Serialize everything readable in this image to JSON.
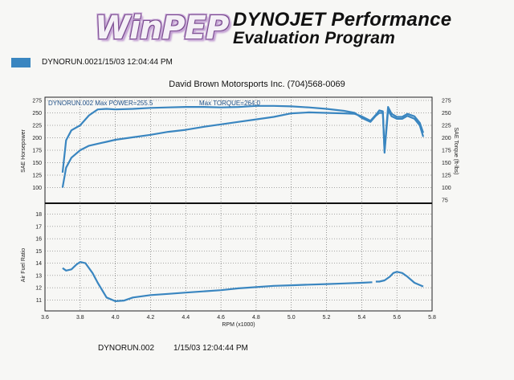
{
  "header": {
    "logo_text": "WinPEP",
    "brand_line1": "DYNOJET Performance",
    "brand_line2": "Evaluation Program"
  },
  "legend": {
    "entry": "DYNORUN.0021/15/03 12:04:44 PM",
    "swatch_color": "#3a86c0"
  },
  "shop_line": "David Brown Motorsports Inc. (704)568-0069",
  "footer": {
    "run_name": "DYNORUN.002",
    "run_date": "1/15/03 12:04:44 PM"
  },
  "chart_data": {
    "type": "line",
    "xlabel": "RPM (x1000)",
    "x_ticks": [
      "3.6",
      "3.8",
      "4.0",
      "4.2",
      "4.4",
      "4.6",
      "4.8",
      "5.0",
      "5.2",
      "5.4",
      "5.6",
      "5.8"
    ],
    "xlim": [
      3.6,
      5.8
    ],
    "series_color": "#3a86c0",
    "upper": {
      "ylabel_left": "SAE Horsepower",
      "ylabel_right": "SAE Torque (ft-lbs)",
      "y_ticks_left": [
        "100",
        "125",
        "150",
        "175",
        "200",
        "225",
        "250",
        "275"
      ],
      "y_ticks_right": [
        "75",
        "100",
        "125",
        "150",
        "175",
        "200",
        "225",
        "250",
        "275"
      ],
      "ylim": [
        75,
        275
      ],
      "annotation_power": "DYNORUN.002  Max POWER=255.5",
      "annotation_torque": "Max TORQUE=264.0",
      "torque": {
        "x": [
          3.7,
          3.72,
          3.75,
          3.8,
          3.85,
          3.9,
          3.95,
          4.0,
          4.1,
          4.2,
          4.3,
          4.4,
          4.5,
          4.6,
          4.7,
          4.8,
          4.9,
          5.0,
          5.1,
          5.2,
          5.3,
          5.36,
          5.4,
          5.45,
          5.48,
          5.5,
          5.52,
          5.53,
          5.55,
          5.57,
          5.6,
          5.63,
          5.66,
          5.7,
          5.73,
          5.75
        ],
        "values": [
          130,
          195,
          215,
          225,
          245,
          257,
          258,
          257,
          258,
          260,
          261,
          262,
          262,
          261,
          262,
          264,
          264,
          263,
          261,
          258,
          254,
          250,
          240,
          232,
          244,
          250,
          250,
          175,
          262,
          248,
          242,
          242,
          248,
          243,
          230,
          210
        ]
      },
      "power": {
        "x": [
          3.7,
          3.72,
          3.75,
          3.8,
          3.85,
          3.9,
          3.95,
          4.0,
          4.1,
          4.2,
          4.3,
          4.4,
          4.5,
          4.6,
          4.7,
          4.8,
          4.9,
          5.0,
          5.1,
          5.2,
          5.3,
          5.36,
          5.4,
          5.45,
          5.48,
          5.5,
          5.52,
          5.53,
          5.55,
          5.57,
          5.6,
          5.63,
          5.66,
          5.7,
          5.73,
          5.75
        ],
        "values": [
          100,
          140,
          160,
          175,
          184,
          188,
          192,
          196,
          201,
          206,
          212,
          216,
          222,
          227,
          232,
          237,
          242,
          249,
          251,
          250,
          249,
          248,
          243,
          234,
          246,
          255,
          253,
          170,
          255,
          243,
          238,
          238,
          244,
          238,
          225,
          202
        ]
      }
    },
    "lower": {
      "ylabel_left": "Air Fuel Ratio",
      "y_ticks_left": [
        "11",
        "12",
        "13",
        "14",
        "15",
        "16",
        "17",
        "18"
      ],
      "ylim": [
        10.5,
        18.5
      ],
      "afr": {
        "x": [
          3.7,
          3.72,
          3.75,
          3.78,
          3.8,
          3.83,
          3.87,
          3.9,
          3.95,
          4.0,
          4.05,
          4.1,
          4.2,
          4.3,
          4.4,
          4.5,
          4.6,
          4.7,
          4.8,
          4.9,
          5.0,
          5.1,
          5.2,
          5.3,
          5.4,
          5.46,
          5.48,
          5.5,
          5.53,
          5.56,
          5.58,
          5.6,
          5.63,
          5.66,
          5.7,
          5.75
        ],
        "values": [
          13.6,
          13.4,
          13.5,
          13.9,
          14.1,
          14.0,
          13.2,
          12.4,
          11.2,
          10.9,
          10.95,
          11.2,
          11.4,
          11.5,
          11.6,
          11.7,
          11.8,
          11.95,
          12.05,
          12.15,
          12.2,
          12.25,
          12.3,
          12.35,
          12.4,
          12.45,
          12.5,
          12.5,
          12.6,
          12.9,
          13.2,
          13.3,
          13.2,
          12.9,
          12.4,
          12.1
        ]
      }
    },
    "grid": "dotted"
  }
}
